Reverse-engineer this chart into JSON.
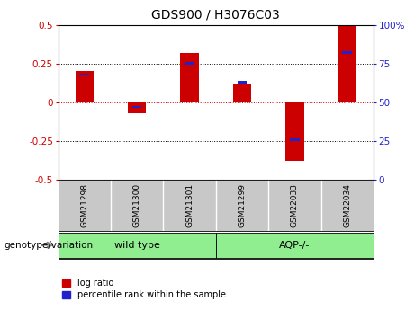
{
  "title": "GDS900 / H3076C03",
  "samples": [
    "GSM21298",
    "GSM21300",
    "GSM21301",
    "GSM21299",
    "GSM22033",
    "GSM22034"
  ],
  "log_ratios": [
    0.2,
    -0.07,
    0.32,
    0.12,
    -0.38,
    0.5
  ],
  "percentile_ranks": [
    68,
    47,
    75,
    63,
    26,
    82
  ],
  "bar_color_red": "#CC0000",
  "bar_color_blue": "#2222CC",
  "bar_width": 0.35,
  "blue_bar_width": 0.18,
  "ylim": [
    -0.5,
    0.5
  ],
  "y2lim": [
    0,
    100
  ],
  "yticks": [
    -0.5,
    -0.25,
    0.0,
    0.25,
    0.5
  ],
  "y2ticks": [
    0,
    25,
    50,
    75,
    100
  ],
  "hlines_dotted": [
    -0.25,
    0.25
  ],
  "hline_zero_color": "#CC0000",
  "hline_dot_color": "#000000",
  "bg_color": "#FFFFFF",
  "plot_bg": "#FFFFFF",
  "legend_red_label": "log ratio",
  "legend_blue_label": "percentile rank within the sample",
  "left_ylabel_color": "#CC0000",
  "right_ylabel_color": "#2222CC",
  "title_fontsize": 10,
  "tick_label_fontsize": 7.5,
  "sample_label_fontsize": 6.5,
  "group_label_fontsize": 8,
  "genotype_label": "genotype/variation",
  "genotype_label_fontsize": 7.5,
  "sample_area_color": "#C8C8C8",
  "group_green": "#90EE90",
  "legend_fontsize": 7,
  "group_boundaries": [
    [
      -0.5,
      2.5,
      "wild type"
    ],
    [
      2.5,
      5.5,
      "AQP-/-"
    ]
  ]
}
